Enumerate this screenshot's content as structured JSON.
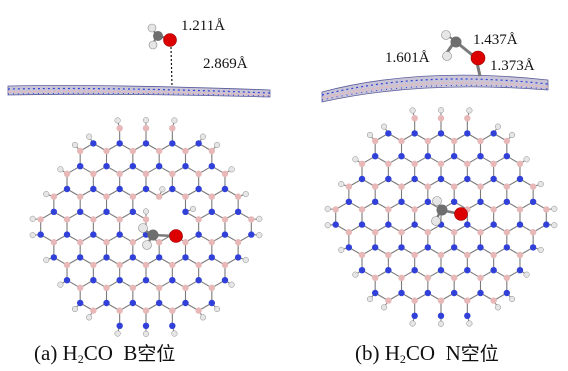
{
  "panels": [
    {
      "id": "a",
      "side_labels": {
        "co_bond": "1.211Å",
        "surface_distance": "2.869Å"
      },
      "caption": {
        "prefix": "(a) H",
        "subscript": "2",
        "mid": "CO  B",
        "cjk": "空位"
      }
    },
    {
      "id": "b",
      "side_labels": {
        "left_bond": "1.601Å",
        "top_bond": "1.437Å",
        "right_bond": "1.373Å"
      },
      "caption": {
        "prefix": "(b) H",
        "subscript": "2",
        "mid": "CO  N",
        "cjk": "空位"
      }
    }
  ],
  "colors": {
    "boron": "#e8b8b8",
    "nitrogen": "#3040d8",
    "hydrogen": "#e6e6e6",
    "oxygen": "#dd0000",
    "carbon": "#6e6e6e",
    "bond_line": "#7a7a7a"
  }
}
